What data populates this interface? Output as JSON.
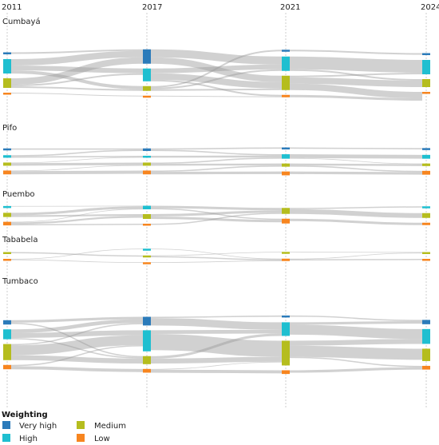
{
  "chart_data": {
    "type": "sankey",
    "title": "",
    "years": [
      "2011",
      "2017",
      "2021",
      "2024"
    ],
    "legend": {
      "title": "Weighting",
      "items": [
        {
          "key": "very_high",
          "label": "Very high",
          "color": "#2b7bba"
        },
        {
          "key": "high",
          "label": "High",
          "color": "#1fbfd0"
        },
        {
          "key": "medium",
          "label": "Medium",
          "color": "#b5bd1e"
        },
        {
          "key": "low",
          "label": "Low",
          "color": "#f7851f"
        }
      ]
    },
    "regions": [
      {
        "name": "Cumbayá",
        "nodes": [
          [
            {
              "cat": "very_high",
              "value": 1
            },
            {
              "cat": "high",
              "value": 9
            },
            {
              "cat": "medium",
              "value": 6
            },
            {
              "cat": "low",
              "value": 0.5
            }
          ],
          [
            {
              "cat": "very_high",
              "value": 9
            },
            {
              "cat": "high",
              "value": 8
            },
            {
              "cat": "medium",
              "value": 3
            },
            {
              "cat": "low",
              "value": 0.5
            }
          ],
          [
            {
              "cat": "very_high",
              "value": 1
            },
            {
              "cat": "high",
              "value": 9
            },
            {
              "cat": "medium",
              "value": 9
            },
            {
              "cat": "low",
              "value": 1.5
            }
          ],
          [
            {
              "cat": "very_high",
              "value": 1
            },
            {
              "cat": "high",
              "value": 9
            },
            {
              "cat": "medium",
              "value": 5
            },
            {
              "cat": "low",
              "value": 0.5
            }
          ]
        ]
      },
      {
        "name": "Pifo",
        "nodes": [
          [
            {
              "cat": "very_high",
              "value": 1
            },
            {
              "cat": "high",
              "value": 2
            },
            {
              "cat": "medium",
              "value": 2.5
            },
            {
              "cat": "low",
              "value": 3
            }
          ],
          [
            {
              "cat": "very_high",
              "value": 2
            },
            {
              "cat": "high",
              "value": 1.5
            },
            {
              "cat": "medium",
              "value": 2.5
            },
            {
              "cat": "low",
              "value": 3
            }
          ],
          [
            {
              "cat": "very_high",
              "value": 1
            },
            {
              "cat": "high",
              "value": 3.5
            },
            {
              "cat": "medium",
              "value": 2.5
            },
            {
              "cat": "low",
              "value": 3
            }
          ],
          [
            {
              "cat": "very_high",
              "value": 1
            },
            {
              "cat": "high",
              "value": 3
            },
            {
              "cat": "medium",
              "value": 2
            },
            {
              "cat": "low",
              "value": 3
            }
          ]
        ]
      },
      {
        "name": "Puembo",
        "nodes": [
          [
            {
              "cat": "high",
              "value": 0.5
            },
            {
              "cat": "medium",
              "value": 3.5
            },
            {
              "cat": "low",
              "value": 3
            }
          ],
          [
            {
              "cat": "high",
              "value": 3
            },
            {
              "cat": "medium",
              "value": 4
            },
            {
              "cat": "low",
              "value": 1
            }
          ],
          [
            {
              "cat": "medium",
              "value": 5
            },
            {
              "cat": "low",
              "value": 4
            }
          ],
          [
            {
              "cat": "high",
              "value": 1
            },
            {
              "cat": "medium",
              "value": 4
            },
            {
              "cat": "low",
              "value": 2
            }
          ]
        ]
      },
      {
        "name": "Tababela",
        "nodes": [
          [
            {
              "cat": "medium",
              "value": 1
            },
            {
              "cat": "low",
              "value": 1
            }
          ],
          [
            {
              "cat": "high",
              "value": 0.5
            },
            {
              "cat": "medium",
              "value": 1.5
            },
            {
              "cat": "low",
              "value": 1
            }
          ],
          [
            {
              "cat": "medium",
              "value": 0.5
            },
            {
              "cat": "low",
              "value": 2
            }
          ],
          [
            {
              "cat": "medium",
              "value": 1
            },
            {
              "cat": "low",
              "value": 1
            }
          ]
        ]
      },
      {
        "name": "Tumbaco",
        "nodes": [
          [
            {
              "cat": "very_high",
              "value": 3.5
            },
            {
              "cat": "high",
              "value": 8
            },
            {
              "cat": "medium",
              "value": 13
            },
            {
              "cat": "low",
              "value": 3.5
            }
          ],
          [
            {
              "cat": "very_high",
              "value": 7
            },
            {
              "cat": "high",
              "value": 17
            },
            {
              "cat": "medium",
              "value": 6.5
            },
            {
              "cat": "low",
              "value": 3
            }
          ],
          [
            {
              "cat": "very_high",
              "value": 1.5
            },
            {
              "cat": "high",
              "value": 11
            },
            {
              "cat": "medium",
              "value": 20
            },
            {
              "cat": "low",
              "value": 3
            }
          ],
          [
            {
              "cat": "very_high",
              "value": 3.5
            },
            {
              "cat": "high",
              "value": 12
            },
            {
              "cat": "medium",
              "value": 10
            },
            {
              "cat": "low",
              "value": 3
            }
          ]
        ]
      }
    ],
    "flows": [
      {
        "region": 0,
        "step": 0,
        "from": "very_high",
        "to": "very_high",
        "value": 1
      },
      {
        "region": 0,
        "step": 0,
        "from": "high",
        "to": "very_high",
        "value": 4
      },
      {
        "region": 0,
        "step": 0,
        "from": "high",
        "to": "high",
        "value": 3
      },
      {
        "region": 0,
        "step": 0,
        "from": "high",
        "to": "medium",
        "value": 2
      },
      {
        "region": 0,
        "step": 0,
        "from": "medium",
        "to": "very_high",
        "value": 4
      },
      {
        "region": 0,
        "step": 0,
        "from": "medium",
        "to": "high",
        "value": 1
      },
      {
        "region": 0,
        "step": 0,
        "from": "medium",
        "to": "medium",
        "value": 1
      },
      {
        "region": 0,
        "step": 0,
        "from": "low",
        "to": "low",
        "value": 0.5
      },
      {
        "region": 0,
        "step": 1,
        "from": "very_high",
        "to": "high",
        "value": 5
      },
      {
        "region": 0,
        "step": 1,
        "from": "very_high",
        "to": "medium",
        "value": 4
      },
      {
        "region": 0,
        "step": 1,
        "from": "high",
        "to": "high",
        "value": 3
      },
      {
        "region": 0,
        "step": 1,
        "from": "high",
        "to": "medium",
        "value": 4
      },
      {
        "region": 0,
        "step": 1,
        "from": "high",
        "to": "low",
        "value": 1
      },
      {
        "region": 0,
        "step": 1,
        "from": "medium",
        "to": "very_high",
        "value": 1
      },
      {
        "region": 0,
        "step": 1,
        "from": "medium",
        "to": "high",
        "value": 1
      },
      {
        "region": 0,
        "step": 1,
        "from": "medium",
        "to": "medium",
        "value": 1
      },
      {
        "region": 0,
        "step": 1,
        "from": "low",
        "to": "low",
        "value": 0.5
      },
      {
        "region": 0,
        "step": 2,
        "from": "very_high",
        "to": "very_high",
        "value": 1
      },
      {
        "region": 0,
        "step": 2,
        "from": "high",
        "to": "high",
        "value": 8
      },
      {
        "region": 0,
        "step": 2,
        "from": "high",
        "to": "medium",
        "value": 1
      },
      {
        "region": 0,
        "step": 2,
        "from": "medium",
        "to": "high",
        "value": 1
      },
      {
        "region": 0,
        "step": 2,
        "from": "medium",
        "to": "medium",
        "value": 4
      },
      {
        "region": 0,
        "step": 2,
        "from": "medium",
        "to": "low",
        "value": 4
      },
      {
        "region": 0,
        "step": 2,
        "from": "low",
        "to": "low",
        "value": 1.5
      },
      {
        "region": 1,
        "step": 0,
        "from": "very_high",
        "to": "very_high",
        "value": 1
      },
      {
        "region": 1,
        "step": 0,
        "from": "high",
        "to": "very_high",
        "value": 1
      },
      {
        "region": 1,
        "step": 0,
        "from": "high",
        "to": "high",
        "value": 1
      },
      {
        "region": 1,
        "step": 0,
        "from": "medium",
        "to": "high",
        "value": 0.5
      },
      {
        "region": 1,
        "step": 0,
        "from": "medium",
        "to": "medium",
        "value": 2
      },
      {
        "region": 1,
        "step": 0,
        "from": "low",
        "to": "medium",
        "value": 0.5
      },
      {
        "region": 1,
        "step": 0,
        "from": "low",
        "to": "low",
        "value": 2.5
      },
      {
        "region": 1,
        "step": 1,
        "from": "very_high",
        "to": "very_high",
        "value": 1
      },
      {
        "region": 1,
        "step": 1,
        "from": "very_high",
        "to": "high",
        "value": 1
      },
      {
        "region": 1,
        "step": 1,
        "from": "high",
        "to": "high",
        "value": 1.5
      },
      {
        "region": 1,
        "step": 1,
        "from": "medium",
        "to": "high",
        "value": 1
      },
      {
        "region": 1,
        "step": 1,
        "from": "medium",
        "to": "medium",
        "value": 1.5
      },
      {
        "region": 1,
        "step": 1,
        "from": "low",
        "to": "medium",
        "value": 1
      },
      {
        "region": 1,
        "step": 1,
        "from": "low",
        "to": "low",
        "value": 2
      },
      {
        "region": 1,
        "step": 2,
        "from": "very_high",
        "to": "very_high",
        "value": 1
      },
      {
        "region": 1,
        "step": 2,
        "from": "high",
        "to": "high",
        "value": 3
      },
      {
        "region": 1,
        "step": 2,
        "from": "high",
        "to": "medium",
        "value": 0.5
      },
      {
        "region": 1,
        "step": 2,
        "from": "medium",
        "to": "medium",
        "value": 1.5
      },
      {
        "region": 1,
        "step": 2,
        "from": "medium",
        "to": "low",
        "value": 1
      },
      {
        "region": 1,
        "step": 2,
        "from": "low",
        "to": "low",
        "value": 2
      },
      {
        "region": 2,
        "step": 0,
        "from": "high",
        "to": "high",
        "value": 0.5
      },
      {
        "region": 2,
        "step": 0,
        "from": "medium",
        "to": "high",
        "value": 2
      },
      {
        "region": 2,
        "step": 0,
        "from": "medium",
        "to": "medium",
        "value": 1.5
      },
      {
        "region": 2,
        "step": 0,
        "from": "low",
        "to": "high",
        "value": 0.5
      },
      {
        "region": 2,
        "step": 0,
        "from": "low",
        "to": "medium",
        "value": 1.5
      },
      {
        "region": 2,
        "step": 0,
        "from": "low",
        "to": "low",
        "value": 1
      },
      {
        "region": 2,
        "step": 1,
        "from": "high",
        "to": "medium",
        "value": 2
      },
      {
        "region": 2,
        "step": 1,
        "from": "high",
        "to": "low",
        "value": 1
      },
      {
        "region": 2,
        "step": 1,
        "from": "medium",
        "to": "medium",
        "value": 2
      },
      {
        "region": 2,
        "step": 1,
        "from": "medium",
        "to": "low",
        "value": 2
      },
      {
        "region": 2,
        "step": 1,
        "from": "low",
        "to": "medium",
        "value": 1
      },
      {
        "region": 2,
        "step": 2,
        "from": "medium",
        "to": "high",
        "value": 1
      },
      {
        "region": 2,
        "step": 2,
        "from": "medium",
        "to": "medium",
        "value": 4
      },
      {
        "region": 2,
        "step": 2,
        "from": "low",
        "to": "low",
        "value": 2
      },
      {
        "region": 3,
        "step": 0,
        "from": "medium",
        "to": "medium",
        "value": 1
      },
      {
        "region": 3,
        "step": 0,
        "from": "low",
        "to": "high",
        "value": 0.5
      },
      {
        "region": 3,
        "step": 0,
        "from": "low",
        "to": "low",
        "value": 0.5
      },
      {
        "region": 3,
        "step": 1,
        "from": "high",
        "to": "low",
        "value": 0.5
      },
      {
        "region": 3,
        "step": 1,
        "from": "medium",
        "to": "medium",
        "value": 0.5
      },
      {
        "region": 3,
        "step": 1,
        "from": "medium",
        "to": "low",
        "value": 1
      },
      {
        "region": 3,
        "step": 1,
        "from": "low",
        "to": "low",
        "value": 0.5
      },
      {
        "region": 3,
        "step": 2,
        "from": "medium",
        "to": "medium",
        "value": 0.5
      },
      {
        "region": 3,
        "step": 2,
        "from": "low",
        "to": "medium",
        "value": 0.5
      },
      {
        "region": 3,
        "step": 2,
        "from": "low",
        "to": "low",
        "value": 1
      },
      {
        "region": 4,
        "step": 0,
        "from": "very_high",
        "to": "very_high",
        "value": 2
      },
      {
        "region": 4,
        "step": 0,
        "from": "very_high",
        "to": "medium",
        "value": 1
      },
      {
        "region": 4,
        "step": 0,
        "from": "high",
        "to": "very_high",
        "value": 3
      },
      {
        "region": 4,
        "step": 0,
        "from": "high",
        "to": "high",
        "value": 4
      },
      {
        "region": 4,
        "step": 0,
        "from": "high",
        "to": "medium",
        "value": 1
      },
      {
        "region": 4,
        "step": 0,
        "from": "medium",
        "to": "very_high",
        "value": 1
      },
      {
        "region": 4,
        "step": 0,
        "from": "medium",
        "to": "high",
        "value": 8
      },
      {
        "region": 4,
        "step": 0,
        "from": "medium",
        "to": "medium",
        "value": 4
      },
      {
        "region": 4,
        "step": 0,
        "from": "low",
        "to": "high",
        "value": 1
      },
      {
        "region": 4,
        "step": 0,
        "from": "low",
        "to": "low",
        "value": 2.5
      },
      {
        "region": 4,
        "step": 1,
        "from": "very_high",
        "to": "very_high",
        "value": 1
      },
      {
        "region": 4,
        "step": 1,
        "from": "very_high",
        "to": "high",
        "value": 6
      },
      {
        "region": 4,
        "step": 1,
        "from": "high",
        "to": "high",
        "value": 3
      },
      {
        "region": 4,
        "step": 1,
        "from": "high",
        "to": "medium",
        "value": 13
      },
      {
        "region": 4,
        "step": 1,
        "from": "medium",
        "to": "high",
        "value": 2
      },
      {
        "region": 4,
        "step": 1,
        "from": "medium",
        "to": "medium",
        "value": 4
      },
      {
        "region": 4,
        "step": 1,
        "from": "low",
        "to": "medium",
        "value": 0.5
      },
      {
        "region": 4,
        "step": 1,
        "from": "low",
        "to": "low",
        "value": 2.5
      },
      {
        "region": 4,
        "step": 2,
        "from": "very_high",
        "to": "very_high",
        "value": 1
      },
      {
        "region": 4,
        "step": 2,
        "from": "high",
        "to": "very_high",
        "value": 2
      },
      {
        "region": 4,
        "step": 2,
        "from": "high",
        "to": "high",
        "value": 8
      },
      {
        "region": 4,
        "step": 2,
        "from": "medium",
        "to": "high",
        "value": 4
      },
      {
        "region": 4,
        "step": 2,
        "from": "medium",
        "to": "medium",
        "value": 9
      },
      {
        "region": 4,
        "step": 2,
        "from": "medium",
        "to": "low",
        "value": 1
      },
      {
        "region": 4,
        "step": 2,
        "from": "low",
        "to": "low",
        "value": 2
      }
    ]
  }
}
